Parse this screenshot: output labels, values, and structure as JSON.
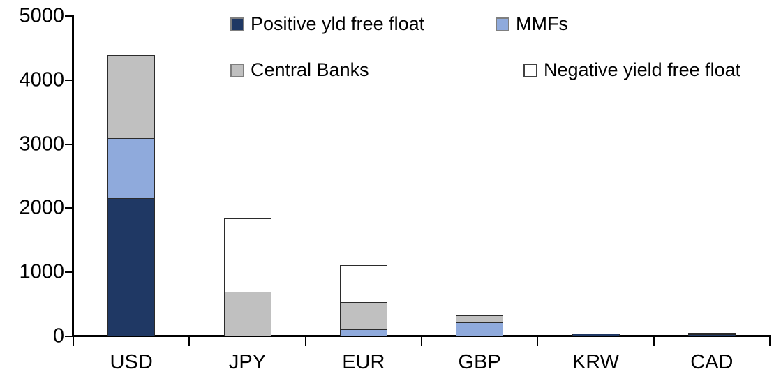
{
  "chart_data": {
    "type": "bar",
    "stacked": true,
    "title": "",
    "xlabel": "",
    "ylabel": "",
    "categories": [
      "USD",
      "JPY",
      "EUR",
      "GBP",
      "KRW",
      "CAD"
    ],
    "series": [
      {
        "name": "Positive yld free float",
        "color": "#1F3864",
        "values": [
          2160,
          0,
          0,
          0,
          40,
          30
        ]
      },
      {
        "name": "MMFs",
        "color": "#8FAADC",
        "values": [
          930,
          0,
          105,
          220,
          0,
          0
        ]
      },
      {
        "name": "Central Banks",
        "color": "#C0C0C0",
        "values": [
          1300,
          700,
          430,
          105,
          0,
          30
        ]
      },
      {
        "name": "Negative yield free float",
        "color": "#FFFFFF",
        "values": [
          0,
          1145,
          575,
          0,
          0,
          0
        ]
      }
    ],
    "totals": [
      4390,
      1845,
      1110,
      325,
      40,
      60
    ],
    "ylim": [
      0,
      5000
    ],
    "ytick_interval": 1000,
    "yticks": [
      "0",
      "1000",
      "2000",
      "3000",
      "4000",
      "5000"
    ],
    "grid": false,
    "legend_position": "top",
    "axis_color": "#000000",
    "segment_border_color": "#2b2b2b"
  }
}
